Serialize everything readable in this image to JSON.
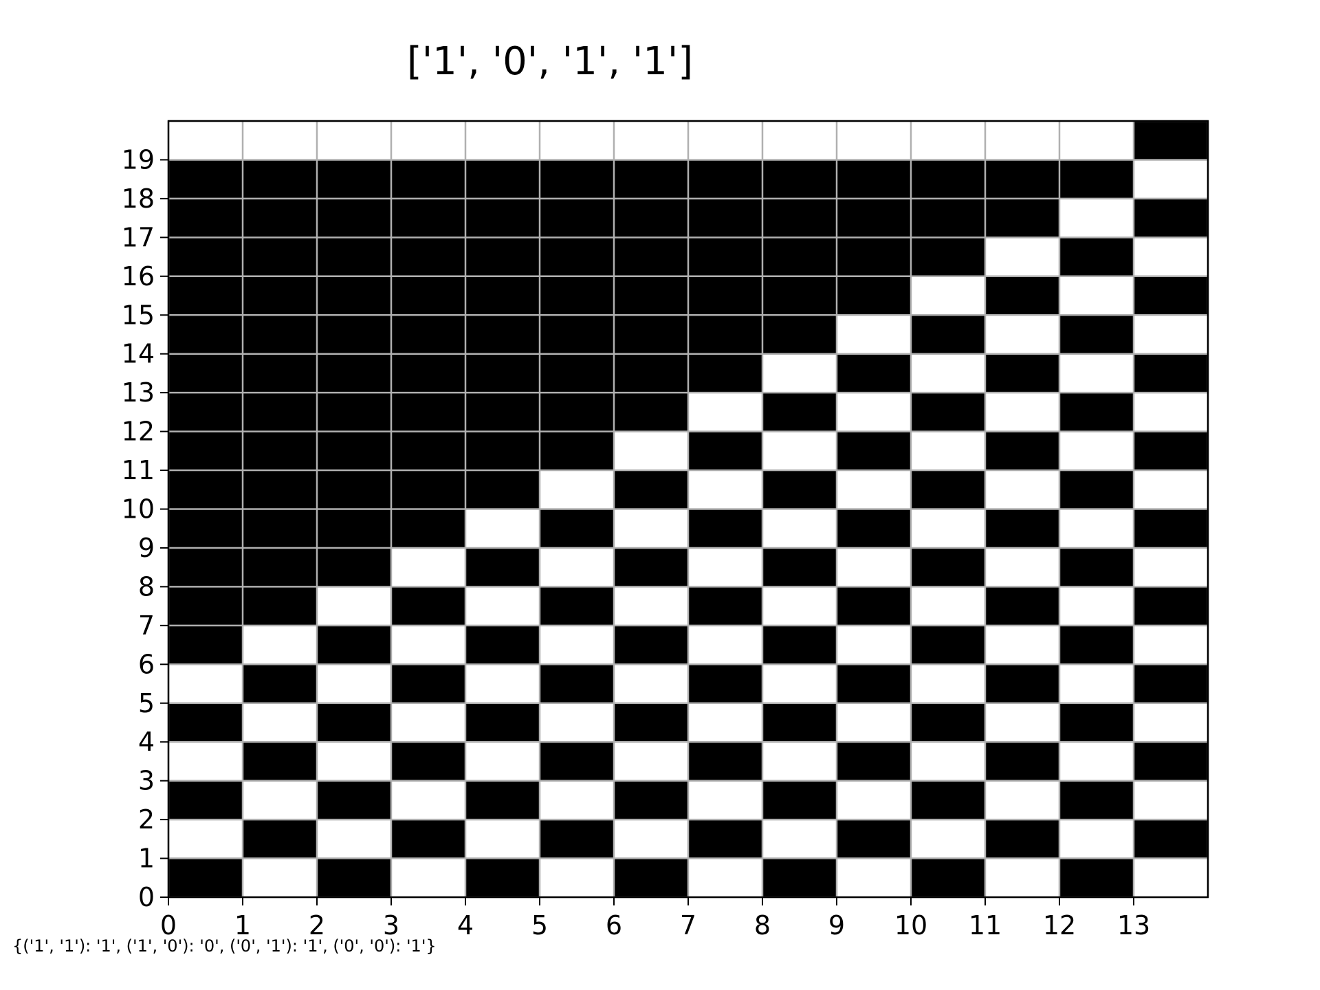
{
  "chart_data": {
    "type": "heatmap",
    "title": "['1', '0', '1', '1']",
    "footnote": "{('1', '1'): '1', ('1', '0'): '0', ('0', '1'): '1', ('0', '0'): '1'}",
    "xlabel": "",
    "ylabel": "",
    "columns": 14,
    "rows": 20,
    "xlim": [
      0,
      14
    ],
    "ylim": [
      0,
      20
    ],
    "x_ticks": [
      "0",
      "1",
      "2",
      "3",
      "4",
      "5",
      "6",
      "7",
      "8",
      "9",
      "10",
      "11",
      "12",
      "13"
    ],
    "y_ticks": [
      "0",
      "1",
      "2",
      "3",
      "4",
      "5",
      "6",
      "7",
      "8",
      "9",
      "10",
      "11",
      "12",
      "13",
      "14",
      "15",
      "16",
      "17",
      "18",
      "19"
    ],
    "grid": true,
    "colors": {
      "on": "#000000",
      "off": "#ffffff",
      "grid": "#b0b0b0",
      "frame": "#000000"
    },
    "cells_note_rows_bottom_to_top": true,
    "cells": [
      [
        1,
        0,
        1,
        0,
        1,
        0,
        1,
        0,
        1,
        0,
        1,
        0,
        1,
        0
      ],
      [
        0,
        1,
        0,
        1,
        0,
        1,
        0,
        1,
        0,
        1,
        0,
        1,
        0,
        1
      ],
      [
        1,
        0,
        1,
        0,
        1,
        0,
        1,
        0,
        1,
        0,
        1,
        0,
        1,
        0
      ],
      [
        0,
        1,
        0,
        1,
        0,
        1,
        0,
        1,
        0,
        1,
        0,
        1,
        0,
        1
      ],
      [
        1,
        0,
        1,
        0,
        1,
        0,
        1,
        0,
        1,
        0,
        1,
        0,
        1,
        0
      ],
      [
        0,
        1,
        0,
        1,
        0,
        1,
        0,
        1,
        0,
        1,
        0,
        1,
        0,
        1
      ],
      [
        1,
        0,
        1,
        0,
        1,
        0,
        1,
        0,
        1,
        0,
        1,
        0,
        1,
        0
      ],
      [
        1,
        1,
        0,
        1,
        0,
        1,
        0,
        1,
        0,
        1,
        0,
        1,
        0,
        1
      ],
      [
        1,
        1,
        1,
        0,
        1,
        0,
        1,
        0,
        1,
        0,
        1,
        0,
        1,
        0
      ],
      [
        1,
        1,
        1,
        1,
        0,
        1,
        0,
        1,
        0,
        1,
        0,
        1,
        0,
        1
      ],
      [
        1,
        1,
        1,
        1,
        1,
        0,
        1,
        0,
        1,
        0,
        1,
        0,
        1,
        0
      ],
      [
        1,
        1,
        1,
        1,
        1,
        1,
        0,
        1,
        0,
        1,
        0,
        1,
        0,
        1
      ],
      [
        1,
        1,
        1,
        1,
        1,
        1,
        1,
        0,
        1,
        0,
        1,
        0,
        1,
        0
      ],
      [
        1,
        1,
        1,
        1,
        1,
        1,
        1,
        1,
        0,
        1,
        0,
        1,
        0,
        1
      ],
      [
        1,
        1,
        1,
        1,
        1,
        1,
        1,
        1,
        1,
        0,
        1,
        0,
        1,
        0
      ],
      [
        1,
        1,
        1,
        1,
        1,
        1,
        1,
        1,
        1,
        1,
        0,
        1,
        0,
        1
      ],
      [
        1,
        1,
        1,
        1,
        1,
        1,
        1,
        1,
        1,
        1,
        1,
        0,
        1,
        0
      ],
      [
        1,
        1,
        1,
        1,
        1,
        1,
        1,
        1,
        1,
        1,
        1,
        1,
        0,
        1
      ],
      [
        1,
        1,
        1,
        1,
        1,
        1,
        1,
        1,
        1,
        1,
        1,
        1,
        1,
        0
      ],
      [
        0,
        0,
        0,
        0,
        0,
        0,
        0,
        0,
        0,
        0,
        0,
        0,
        0,
        1
      ]
    ]
  }
}
